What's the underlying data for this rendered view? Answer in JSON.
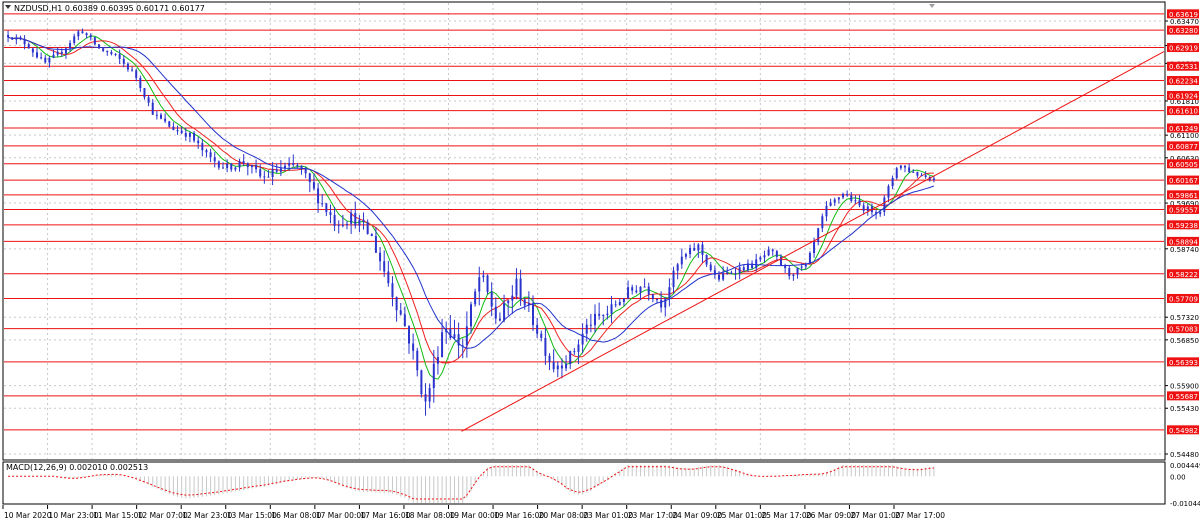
{
  "symbol_info": "NZDUSD,H1  0.60389 0.60395 0.60171 0.60177",
  "macd_info": "MACD(12,26,9) 0.002010 0.002513",
  "colors": {
    "candle": "#2a33cc",
    "level_line": "#ee1111",
    "level_badge": "#ee1111",
    "ma_red": "#ee2222",
    "ma_green": "#11bb11",
    "ma_blue": "#2233cc",
    "grid": "#c8c8c8",
    "macd_hist": "#c8c8c8",
    "macd_signal": "#ee1111"
  },
  "x_labels": [
    "10 Mar 2020",
    "10 Mar 23:00",
    "11 Mar 15:00",
    "12 Mar 07:00",
    "12 Mar 23:00",
    "13 Mar 15:00",
    "16 Mar 08:00",
    "17 Mar 00:00",
    "17 Mar 16:00",
    "18 Mar 08:00",
    "19 Mar 00:00",
    "19 Mar 16:00",
    "20 Mar 08:00",
    "23 Mar 01:00",
    "23 Mar 17:00",
    "24 Mar 09:00",
    "25 Mar 01:00",
    "25 Mar 17:00",
    "26 Mar 09:00",
    "27 Mar 01:00",
    "27 Mar 17:00"
  ],
  "y_labels": [
    "0.63470",
    "0.62960",
    "0.62590",
    "0.61810",
    "0.61100",
    "0.60630",
    "0.59690",
    "0.58740",
    "0.57320",
    "0.56850",
    "0.55900",
    "0.55430",
    "0.54480"
  ],
  "level_labels": [
    "0.63619",
    "0.63280",
    "0.62919",
    "0.62531",
    "0.62234",
    "0.61924",
    "0.61610",
    "0.61249",
    "0.60877",
    "0.60505",
    "0.60167",
    "0.59861",
    "0.59557",
    "0.59238",
    "0.58894",
    "0.58222",
    "0.57709",
    "0.57083",
    "0.56393",
    "0.55687",
    "0.54982"
  ],
  "macd_labels": [
    "0.004449",
    "0.00",
    "-0.010448"
  ],
  "chart_data": {
    "type": "candlestick",
    "symbol": "NZDUSD",
    "timeframe": "H1",
    "ohlc_current": {
      "open": 0.60389,
      "high": 0.60395,
      "low": 0.60171,
      "close": 0.60177
    },
    "ylim": [
      0.5448,
      0.6365
    ],
    "x": [
      "10 Mar 2020",
      "10 Mar 23:00",
      "11 Mar 15:00",
      "12 Mar 07:00",
      "12 Mar 23:00",
      "13 Mar 15:00",
      "16 Mar 08:00",
      "17 Mar 00:00",
      "17 Mar 16:00",
      "18 Mar 08:00",
      "19 Mar 00:00",
      "19 Mar 16:00",
      "20 Mar 08:00",
      "23 Mar 01:00",
      "23 Mar 17:00",
      "24 Mar 09:00",
      "25 Mar 01:00",
      "25 Mar 17:00",
      "26 Mar 09:00",
      "27 Mar 01:00",
      "27 Mar 17:00"
    ],
    "close_path": [
      0.6318,
      0.63,
      0.6258,
      0.6285,
      0.633,
      0.629,
      0.6272,
      0.6235,
      0.6155,
      0.6125,
      0.611,
      0.6065,
      0.6042,
      0.6055,
      0.602,
      0.604,
      0.6045,
      0.5985,
      0.593,
      0.594,
      0.59,
      0.58,
      0.57,
      0.555,
      0.572,
      0.567,
      0.582,
      0.572,
      0.58,
      0.572,
      0.563,
      0.565,
      0.572,
      0.574,
      0.578,
      0.58,
      0.576,
      0.585,
      0.588,
      0.581,
      0.583,
      0.584,
      0.587,
      0.582,
      0.584,
      0.5955,
      0.599,
      0.596,
      0.595,
      0.605,
      0.603,
      0.602
    ],
    "levels": [
      0.63619,
      0.6328,
      0.62919,
      0.62531,
      0.62234,
      0.61924,
      0.6161,
      0.61249,
      0.60877,
      0.60505,
      0.60167,
      0.59861,
      0.59557,
      0.59238,
      0.58894,
      0.58222,
      0.57709,
      0.57083,
      0.56393,
      0.55687,
      0.54982
    ],
    "trendline": {
      "from": {
        "x": "19 Mar 00:00",
        "y": 0.5495
      },
      "to": {
        "x": "27 Mar 17:00",
        "y": 0.5995
      }
    },
    "moving_averages": [
      "red",
      "green",
      "blue"
    ],
    "macd": {
      "params": "12,26,9",
      "main": 0.00201,
      "signal": 0.002513,
      "ylim": [
        -0.010448,
        0.004449
      ]
    }
  }
}
